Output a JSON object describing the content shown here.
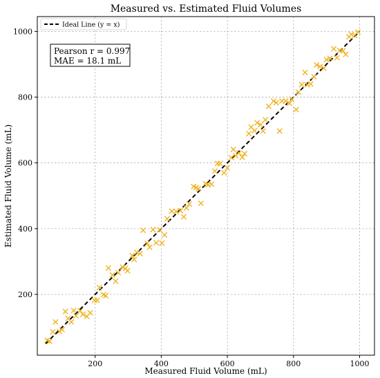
{
  "chart_data": {
    "type": "scatter",
    "title": "Measured vs. Estimated Fluid Volumes",
    "xlabel": "Measured Fluid Volume (mL)",
    "ylabel": "Estimated Fluid Volume (mL)",
    "xlim": [
      25,
      1045
    ],
    "ylim": [
      15,
      1045
    ],
    "xticks": [
      200,
      400,
      600,
      800,
      1000
    ],
    "yticks": [
      200,
      400,
      600,
      800,
      1000
    ],
    "grid": true,
    "legend_position": "top-left",
    "annotation": {
      "line1": "Pearson r = 0.997",
      "line2": "MAE = 18.1 mL"
    },
    "ideal_line": {
      "name": "Ideal Line (y = x)",
      "x": [
        50,
        1000
      ],
      "y": [
        50,
        1000
      ],
      "color": "#000000"
    },
    "series": [
      {
        "marker_color": "#f0b323",
        "points": [
          [
            55,
            60
          ],
          [
            62,
            57
          ],
          [
            72,
            86
          ],
          [
            80,
            116
          ],
          [
            92,
            87
          ],
          [
            100,
            93
          ],
          [
            110,
            148
          ],
          [
            118,
            127
          ],
          [
            128,
            116
          ],
          [
            135,
            151
          ],
          [
            142,
            135
          ],
          [
            155,
            150
          ],
          [
            163,
            139
          ],
          [
            175,
            133
          ],
          [
            185,
            144
          ],
          [
            198,
            182
          ],
          [
            206,
            182
          ],
          [
            213,
            221
          ],
          [
            225,
            199
          ],
          [
            232,
            196
          ],
          [
            240,
            280
          ],
          [
            252,
            259
          ],
          [
            262,
            240
          ],
          [
            270,
            266
          ],
          [
            283,
            283
          ],
          [
            292,
            279
          ],
          [
            298,
            272
          ],
          [
            312,
            318
          ],
          [
            318,
            306
          ],
          [
            326,
            328
          ],
          [
            336,
            324
          ],
          [
            345,
            395
          ],
          [
            358,
            355
          ],
          [
            365,
            343
          ],
          [
            375,
            397
          ],
          [
            385,
            357
          ],
          [
            395,
            396
          ],
          [
            402,
            356
          ],
          [
            410,
            381
          ],
          [
            418,
            430
          ],
          [
            432,
            453
          ],
          [
            445,
            452
          ],
          [
            458,
            455
          ],
          [
            468,
            436
          ],
          [
            476,
            463
          ],
          [
            485,
            475
          ],
          [
            498,
            528
          ],
          [
            506,
            525
          ],
          [
            512,
            521
          ],
          [
            520,
            477
          ],
          [
            534,
            537
          ],
          [
            542,
            533
          ],
          [
            552,
            535
          ],
          [
            562,
            575
          ],
          [
            570,
            598
          ],
          [
            578,
            598
          ],
          [
            590,
            570
          ],
          [
            600,
            585
          ],
          [
            612,
            616
          ],
          [
            618,
            641
          ],
          [
            625,
            622
          ],
          [
            635,
            630
          ],
          [
            645,
            617
          ],
          [
            652,
            628
          ],
          [
            665,
            689
          ],
          [
            672,
            709
          ],
          [
            682,
            698
          ],
          [
            690,
            722
          ],
          [
            700,
            716
          ],
          [
            708,
            697
          ],
          [
            715,
            731
          ],
          [
            725,
            772
          ],
          [
            740,
            788
          ],
          [
            748,
            783
          ],
          [
            758,
            697
          ],
          [
            765,
            788
          ],
          [
            776,
            788
          ],
          [
            788,
            781
          ],
          [
            795,
            793
          ],
          [
            808,
            762
          ],
          [
            815,
            815
          ],
          [
            825,
            838
          ],
          [
            835,
            875
          ],
          [
            842,
            838
          ],
          [
            852,
            840
          ],
          [
            862,
            862
          ],
          [
            870,
            898
          ],
          [
            880,
            893
          ],
          [
            892,
            888
          ],
          [
            900,
            914
          ],
          [
            910,
            918
          ],
          [
            922,
            947
          ],
          [
            932,
            920
          ],
          [
            940,
            942
          ],
          [
            950,
            941
          ],
          [
            958,
            930
          ],
          [
            968,
            984
          ],
          [
            975,
            991
          ],
          [
            985,
            988
          ],
          [
            995,
            998
          ]
        ]
      }
    ]
  }
}
